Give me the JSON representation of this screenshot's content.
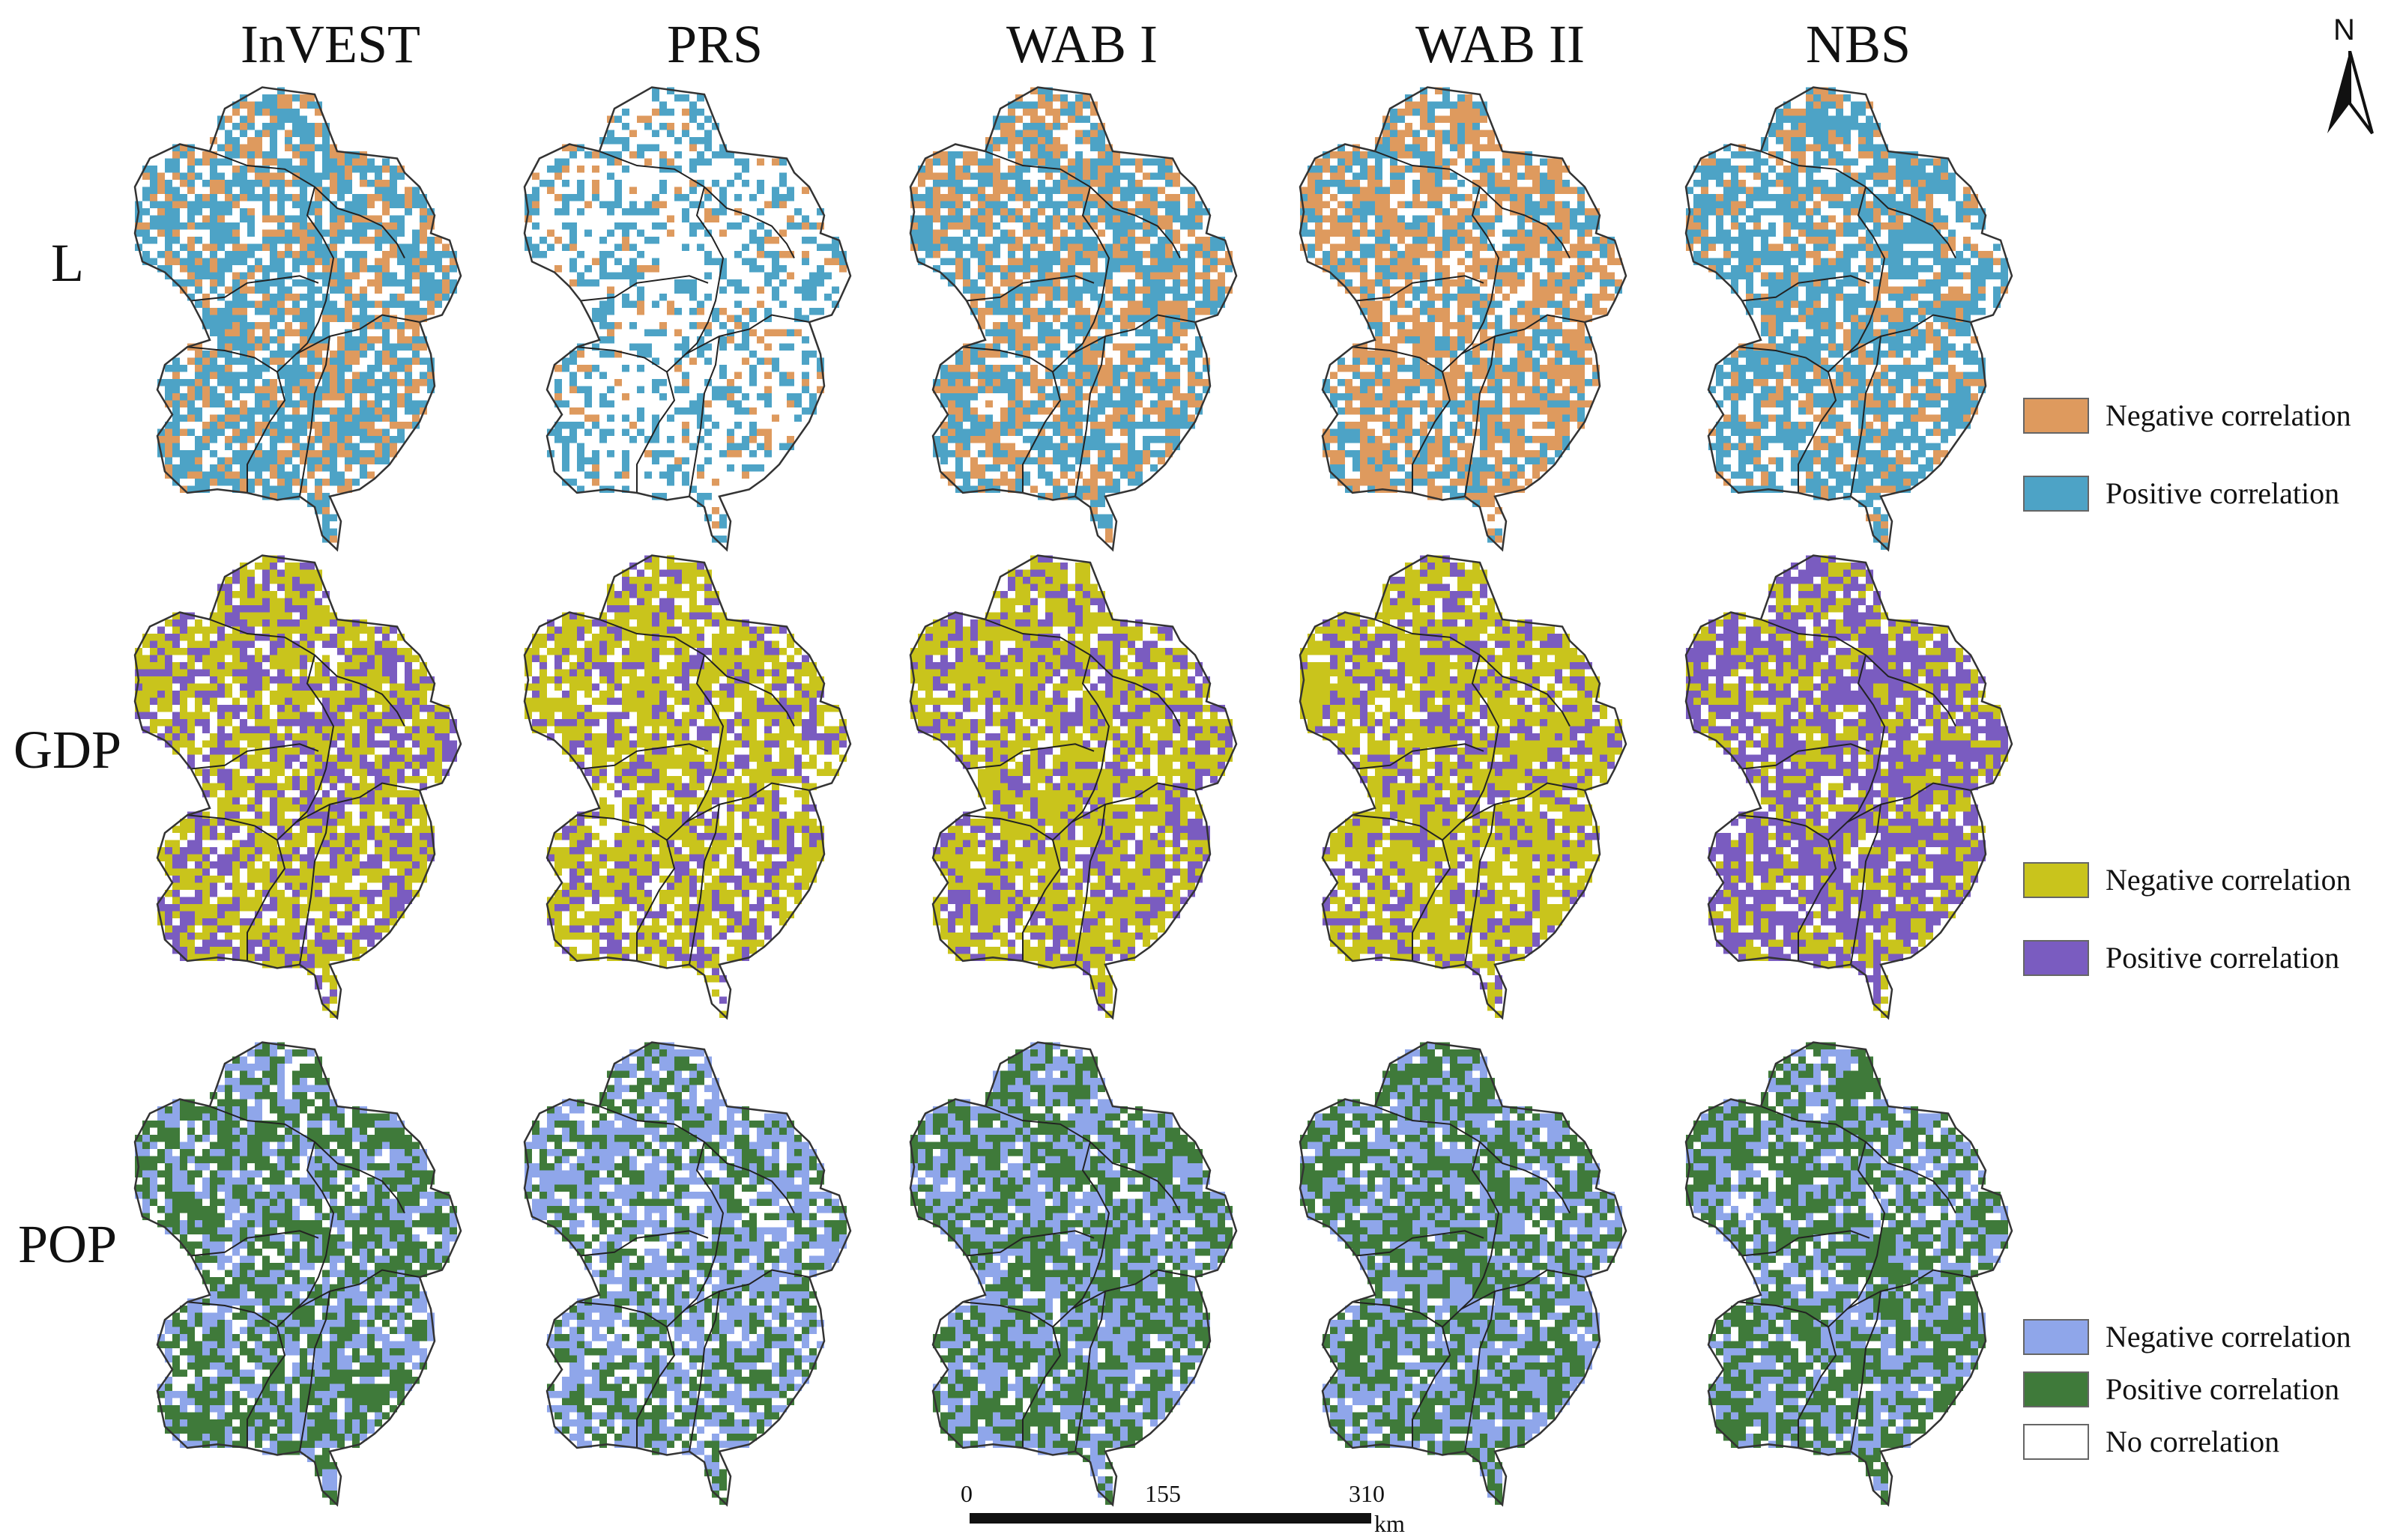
{
  "columns": [
    "InVEST",
    "PRS",
    "WAB I",
    "WAB II",
    "NBS"
  ],
  "rows": [
    {
      "label": "L",
      "colors": {
        "negative": "#de9a5e",
        "positive": "#4da3c6",
        "none": "#ffffff"
      },
      "legend": [
        {
          "label": "Negative correlation",
          "color": "#de9a5e"
        },
        {
          "label": "Positive correlation",
          "color": "#4da3c6"
        }
      ],
      "maps": {
        "InVEST": {
          "negative": 0.25,
          "positive": 0.5
        },
        "PRS": {
          "negative": 0.08,
          "positive": 0.3
        },
        "WAB I": {
          "negative": 0.3,
          "positive": 0.45
        },
        "WAB II": {
          "negative": 0.45,
          "positive": 0.3
        },
        "NBS": {
          "negative": 0.2,
          "positive": 0.55
        }
      }
    },
    {
      "label": "GDP",
      "colors": {
        "negative": "#c9c41c",
        "positive": "#7a5cc0",
        "none": "#ffffff"
      },
      "legend": [
        {
          "label": "Negative correlation",
          "color": "#c9c41c"
        },
        {
          "label": "Positive correlation",
          "color": "#7a5cc0"
        }
      ],
      "maps": {
        "InVEST": {
          "negative": 0.5,
          "positive": 0.35
        },
        "PRS": {
          "negative": 0.55,
          "positive": 0.25
        },
        "WAB I": {
          "negative": 0.55,
          "positive": 0.3
        },
        "WAB II": {
          "negative": 0.6,
          "positive": 0.25
        },
        "NBS": {
          "negative": 0.3,
          "positive": 0.55
        }
      }
    },
    {
      "label": "POP",
      "colors": {
        "negative": "#8fa6ea",
        "positive": "#3f7a3a",
        "none": "#ffffff"
      },
      "legend": [
        {
          "label": "Negative correlation",
          "color": "#8fa6ea"
        },
        {
          "label": "Positive correlation",
          "color": "#3f7a3a"
        },
        {
          "label": "No correlation",
          "color": "#ffffff"
        }
      ],
      "maps": {
        "InVEST": {
          "negative": 0.35,
          "positive": 0.5
        },
        "PRS": {
          "negative": 0.45,
          "positive": 0.35
        },
        "WAB I": {
          "negative": 0.4,
          "positive": 0.5
        },
        "WAB II": {
          "negative": 0.4,
          "positive": 0.5
        },
        "NBS": {
          "negative": 0.35,
          "positive": 0.5
        }
      }
    }
  ],
  "scale_bar": {
    "ticks": [
      "0",
      "155",
      "310"
    ],
    "unit": "km"
  },
  "north_arrow": {
    "label": "N",
    "icon": "north-arrow-icon"
  }
}
